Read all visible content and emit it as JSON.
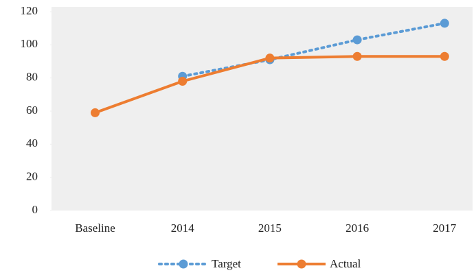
{
  "chart_data": {
    "type": "line",
    "categories": [
      "Baseline",
      "2014",
      "2015",
      "2016",
      "2017"
    ],
    "series": [
      {
        "name": "Target",
        "color": "#5b9bd5",
        "dash": "dotted",
        "values": [
          null,
          81,
          91,
          103,
          113
        ]
      },
      {
        "name": "Actual",
        "color": "#ed7d31",
        "dash": "solid",
        "values": [
          59,
          78,
          92,
          93,
          93
        ]
      }
    ],
    "ylim": [
      0,
      120
    ],
    "yticks": [
      0,
      20,
      40,
      60,
      80,
      100,
      120
    ],
    "legend": "bottom"
  }
}
